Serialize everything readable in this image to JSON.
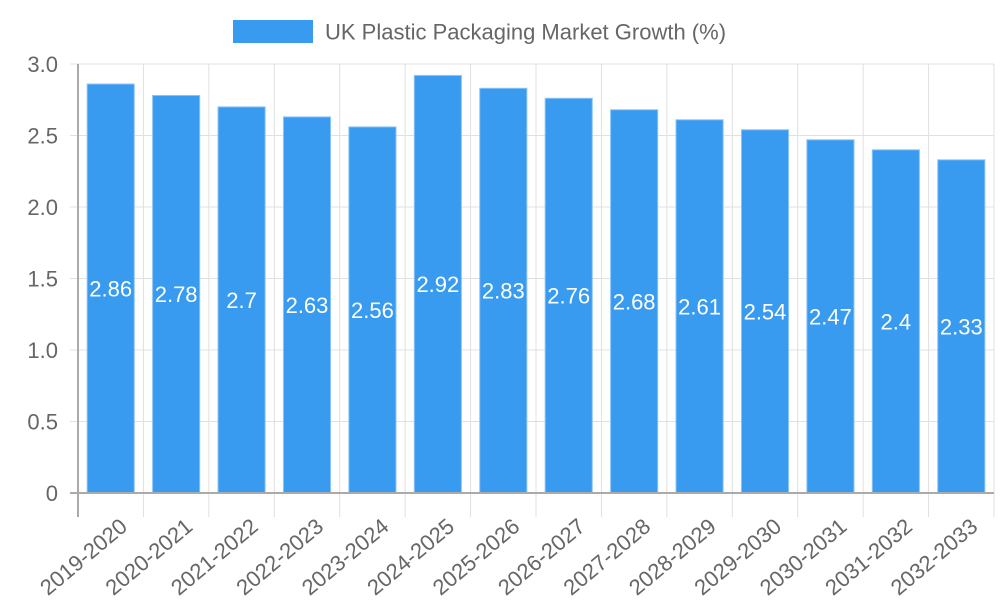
{
  "chart_data": {
    "type": "bar",
    "title": "",
    "legend": [
      {
        "label": "UK Plastic Packaging Market Growth (%)",
        "color": "#389bf0"
      }
    ],
    "legend_position": "top",
    "xlabel": "",
    "ylabel": "",
    "ylim": [
      0,
      3.0
    ],
    "yticks": [
      "0",
      "0.5",
      "1.0",
      "1.5",
      "2.0",
      "2.5",
      "3.0"
    ],
    "grid": true,
    "categories": [
      "2019-2020",
      "2020-2021",
      "2021-2022",
      "2022-2023",
      "2023-2024",
      "2024-2025",
      "2025-2026",
      "2026-2027",
      "2027-2028",
      "2028-2029",
      "2029-2030",
      "2030-2031",
      "2031-2032",
      "2032-2033"
    ],
    "series": [
      {
        "name": "UK Plastic Packaging Market Growth (%)",
        "values": [
          2.86,
          2.78,
          2.7,
          2.63,
          2.56,
          2.92,
          2.83,
          2.76,
          2.68,
          2.61,
          2.54,
          2.47,
          2.4,
          2.33
        ],
        "labels": [
          "2.86",
          "2.78",
          "2.7",
          "2.63",
          "2.56",
          "2.92",
          "2.83",
          "2.76",
          "2.68",
          "2.61",
          "2.54",
          "2.47",
          "2.4",
          "2.33"
        ]
      }
    ],
    "colors": {
      "bar": "#389bf0",
      "bar_border": "#8cc4f6",
      "grid": "#e0e0e0",
      "axis": "#aaaaaa",
      "text": "#666666",
      "value_label": "#ffffff"
    }
  }
}
